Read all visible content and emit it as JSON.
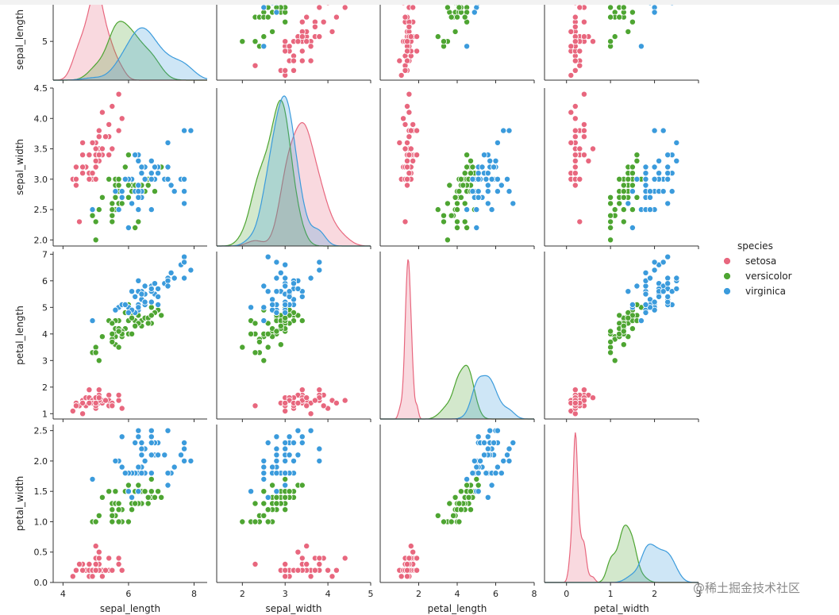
{
  "chart_data": {
    "type": "scatter",
    "subtype": "pairplot",
    "variables": [
      "sepal_length",
      "sepal_width",
      "petal_length",
      "petal_width"
    ],
    "hue": "species",
    "legend": {
      "title": "species",
      "placement": "right-center",
      "entries": [
        {
          "name": "setosa",
          "color": "#e8677e"
        },
        {
          "name": "versicolor",
          "color": "#4ea532"
        },
        {
          "name": "virginica",
          "color": "#3b9bdc"
        }
      ]
    },
    "axes": {
      "sepal_length": {
        "range": [
          3.7,
          8.4
        ],
        "ticks": [
          4,
          6,
          8
        ],
        "tick_labels": [
          "4",
          "6",
          "8"
        ],
        "row_range": [
          4.2,
          6.1
        ],
        "row_ticks": [
          5,
          6
        ],
        "row_tick_labels": [
          "5",
          "6"
        ]
      },
      "sepal_width": {
        "range": [
          1.4,
          5.0
        ],
        "ticks": [
          2,
          3,
          4,
          5
        ],
        "tick_labels": [
          "2",
          "3",
          "4",
          "5"
        ],
        "row_range": [
          1.9,
          4.5
        ],
        "row_ticks": [
          2.0,
          2.5,
          3.0,
          3.5,
          4.0,
          4.5
        ],
        "row_tick_labels": [
          "2.0",
          "2.5",
          "3.0",
          "3.5",
          "4.0",
          "4.5"
        ]
      },
      "petal_length": {
        "range": [
          0.0,
          8.0
        ],
        "ticks": [
          2,
          4,
          6,
          8
        ],
        "tick_labels": [
          "2",
          "4",
          "6",
          "8"
        ],
        "row_range": [
          0.8,
          7.1
        ],
        "row_ticks": [
          1,
          2,
          3,
          4,
          5,
          6,
          7
        ],
        "row_tick_labels": [
          "1",
          "2",
          "3",
          "4",
          "5",
          "6",
          "7"
        ]
      },
      "petal_width": {
        "range": [
          -0.5,
          3.0
        ],
        "ticks": [
          0,
          1,
          2,
          3
        ],
        "tick_labels": [
          "0",
          "1",
          "2",
          "3"
        ],
        "row_range": [
          0.0,
          2.6
        ],
        "row_ticks": [
          0.0,
          0.5,
          1.0,
          1.5,
          2.0,
          2.5
        ],
        "row_tick_labels": [
          "0.0",
          "0.5",
          "1.0",
          "1.5",
          "2.0",
          "2.5"
        ]
      }
    },
    "diagonal": "kde",
    "points": {
      "setosa": [
        [
          5.1,
          3.5,
          1.4,
          0.2
        ],
        [
          4.9,
          3.0,
          1.4,
          0.2
        ],
        [
          4.7,
          3.2,
          1.3,
          0.2
        ],
        [
          4.6,
          3.1,
          1.5,
          0.2
        ],
        [
          5.0,
          3.6,
          1.4,
          0.2
        ],
        [
          5.4,
          3.9,
          1.7,
          0.4
        ],
        [
          4.6,
          3.4,
          1.4,
          0.3
        ],
        [
          5.0,
          3.4,
          1.5,
          0.2
        ],
        [
          4.4,
          2.9,
          1.4,
          0.2
        ],
        [
          4.9,
          3.1,
          1.5,
          0.1
        ],
        [
          5.4,
          3.7,
          1.5,
          0.2
        ],
        [
          4.8,
          3.4,
          1.6,
          0.2
        ],
        [
          4.8,
          3.0,
          1.4,
          0.1
        ],
        [
          4.3,
          3.0,
          1.1,
          0.1
        ],
        [
          5.8,
          4.0,
          1.2,
          0.2
        ],
        [
          5.7,
          4.4,
          1.5,
          0.4
        ],
        [
          5.4,
          3.9,
          1.3,
          0.4
        ],
        [
          5.1,
          3.5,
          1.4,
          0.3
        ],
        [
          5.7,
          3.8,
          1.7,
          0.3
        ],
        [
          5.1,
          3.8,
          1.5,
          0.3
        ],
        [
          5.4,
          3.4,
          1.7,
          0.2
        ],
        [
          5.1,
          3.7,
          1.5,
          0.4
        ],
        [
          4.6,
          3.6,
          1.0,
          0.2
        ],
        [
          5.1,
          3.3,
          1.7,
          0.5
        ],
        [
          4.8,
          3.4,
          1.9,
          0.2
        ],
        [
          5.0,
          3.0,
          1.6,
          0.2
        ],
        [
          5.0,
          3.4,
          1.6,
          0.4
        ],
        [
          5.2,
          3.5,
          1.5,
          0.2
        ],
        [
          5.2,
          3.4,
          1.4,
          0.2
        ],
        [
          4.7,
          3.2,
          1.6,
          0.2
        ],
        [
          4.8,
          3.1,
          1.6,
          0.2
        ],
        [
          5.4,
          3.4,
          1.5,
          0.4
        ],
        [
          5.2,
          4.1,
          1.5,
          0.1
        ],
        [
          5.5,
          4.2,
          1.4,
          0.2
        ],
        [
          4.9,
          3.1,
          1.5,
          0.2
        ],
        [
          5.0,
          3.2,
          1.2,
          0.2
        ],
        [
          5.5,
          3.5,
          1.3,
          0.2
        ],
        [
          4.9,
          3.6,
          1.4,
          0.1
        ],
        [
          4.4,
          3.0,
          1.3,
          0.2
        ],
        [
          5.1,
          3.4,
          1.5,
          0.2
        ],
        [
          5.0,
          3.5,
          1.3,
          0.3
        ],
        [
          4.5,
          2.3,
          1.3,
          0.3
        ],
        [
          4.4,
          3.2,
          1.3,
          0.2
        ],
        [
          5.0,
          3.5,
          1.6,
          0.6
        ],
        [
          5.1,
          3.8,
          1.9,
          0.4
        ],
        [
          4.8,
          3.0,
          1.4,
          0.3
        ],
        [
          5.1,
          3.8,
          1.6,
          0.2
        ],
        [
          4.6,
          3.2,
          1.4,
          0.2
        ],
        [
          5.3,
          3.7,
          1.5,
          0.2
        ],
        [
          5.0,
          3.3,
          1.4,
          0.2
        ]
      ],
      "versicolor": [
        [
          7.0,
          3.2,
          4.7,
          1.4
        ],
        [
          6.4,
          3.2,
          4.5,
          1.5
        ],
        [
          6.9,
          3.1,
          4.9,
          1.5
        ],
        [
          5.5,
          2.3,
          4.0,
          1.3
        ],
        [
          6.5,
          2.8,
          4.6,
          1.5
        ],
        [
          5.7,
          2.8,
          4.5,
          1.3
        ],
        [
          6.3,
          3.3,
          4.7,
          1.6
        ],
        [
          4.9,
          2.4,
          3.3,
          1.0
        ],
        [
          6.6,
          2.9,
          4.6,
          1.3
        ],
        [
          5.2,
          2.7,
          3.9,
          1.4
        ],
        [
          5.0,
          2.0,
          3.5,
          1.0
        ],
        [
          5.9,
          3.0,
          4.2,
          1.5
        ],
        [
          6.0,
          2.2,
          4.0,
          1.0
        ],
        [
          6.1,
          2.9,
          4.7,
          1.4
        ],
        [
          5.6,
          2.9,
          3.6,
          1.3
        ],
        [
          6.7,
          3.1,
          4.4,
          1.4
        ],
        [
          5.6,
          3.0,
          4.5,
          1.5
        ],
        [
          5.8,
          2.7,
          4.1,
          1.0
        ],
        [
          6.2,
          2.2,
          4.5,
          1.5
        ],
        [
          5.6,
          2.5,
          3.9,
          1.1
        ],
        [
          5.9,
          3.2,
          4.8,
          1.8
        ],
        [
          6.1,
          2.8,
          4.0,
          1.3
        ],
        [
          6.3,
          2.5,
          4.9,
          1.5
        ],
        [
          6.1,
          2.8,
          4.7,
          1.2
        ],
        [
          6.4,
          2.9,
          4.3,
          1.3
        ],
        [
          6.6,
          3.0,
          4.4,
          1.4
        ],
        [
          6.8,
          2.8,
          4.8,
          1.4
        ],
        [
          6.7,
          3.0,
          5.0,
          1.7
        ],
        [
          6.0,
          2.9,
          4.5,
          1.5
        ],
        [
          5.7,
          2.6,
          3.5,
          1.0
        ],
        [
          5.5,
          2.4,
          3.8,
          1.1
        ],
        [
          5.5,
          2.4,
          3.7,
          1.0
        ],
        [
          5.8,
          2.7,
          3.9,
          1.2
        ],
        [
          6.0,
          2.7,
          5.1,
          1.6
        ],
        [
          5.4,
          3.0,
          4.5,
          1.5
        ],
        [
          6.0,
          3.4,
          4.5,
          1.6
        ],
        [
          6.7,
          3.1,
          4.7,
          1.5
        ],
        [
          6.3,
          2.3,
          4.4,
          1.3
        ],
        [
          5.6,
          3.0,
          4.1,
          1.3
        ],
        [
          5.5,
          2.5,
          4.0,
          1.3
        ],
        [
          5.5,
          2.6,
          4.4,
          1.2
        ],
        [
          6.1,
          3.0,
          4.6,
          1.4
        ],
        [
          5.8,
          2.6,
          4.0,
          1.2
        ],
        [
          5.0,
          2.3,
          3.3,
          1.0
        ],
        [
          5.6,
          2.7,
          4.2,
          1.3
        ],
        [
          5.7,
          3.0,
          4.2,
          1.2
        ],
        [
          5.7,
          2.9,
          4.2,
          1.3
        ],
        [
          6.2,
          2.9,
          4.3,
          1.3
        ],
        [
          5.1,
          2.5,
          3.0,
          1.1
        ],
        [
          5.7,
          2.8,
          4.1,
          1.3
        ]
      ],
      "virginica": [
        [
          6.3,
          3.3,
          6.0,
          2.5
        ],
        [
          5.8,
          2.7,
          5.1,
          1.9
        ],
        [
          7.1,
          3.0,
          5.9,
          2.1
        ],
        [
          6.3,
          2.9,
          5.6,
          1.8
        ],
        [
          6.5,
          3.0,
          5.8,
          2.2
        ],
        [
          7.6,
          3.0,
          6.6,
          2.1
        ],
        [
          4.9,
          2.5,
          4.5,
          1.7
        ],
        [
          7.3,
          2.9,
          6.3,
          1.8
        ],
        [
          6.7,
          2.5,
          5.8,
          1.8
        ],
        [
          7.2,
          3.6,
          6.1,
          2.5
        ],
        [
          6.5,
          3.2,
          5.1,
          2.0
        ],
        [
          6.4,
          2.7,
          5.3,
          1.9
        ],
        [
          6.8,
          3.0,
          5.5,
          2.1
        ],
        [
          5.7,
          2.5,
          5.0,
          2.0
        ],
        [
          5.8,
          2.8,
          5.1,
          2.4
        ],
        [
          6.4,
          3.2,
          5.3,
          2.3
        ],
        [
          6.5,
          3.0,
          5.5,
          1.8
        ],
        [
          7.7,
          3.8,
          6.7,
          2.2
        ],
        [
          7.7,
          2.6,
          6.9,
          2.3
        ],
        [
          6.0,
          2.2,
          5.0,
          1.5
        ],
        [
          6.9,
          3.2,
          5.7,
          2.3
        ],
        [
          5.6,
          2.8,
          4.9,
          2.0
        ],
        [
          7.7,
          2.8,
          6.7,
          2.0
        ],
        [
          6.3,
          2.7,
          4.9,
          1.8
        ],
        [
          6.7,
          3.3,
          5.7,
          2.1
        ],
        [
          7.2,
          3.2,
          6.0,
          1.8
        ],
        [
          6.2,
          2.8,
          4.8,
          1.8
        ],
        [
          6.1,
          3.0,
          4.9,
          1.8
        ],
        [
          6.4,
          2.8,
          5.6,
          2.1
        ],
        [
          7.2,
          3.0,
          5.8,
          1.6
        ],
        [
          7.4,
          2.8,
          6.1,
          1.9
        ],
        [
          7.9,
          3.8,
          6.4,
          2.0
        ],
        [
          6.4,
          2.8,
          5.6,
          2.2
        ],
        [
          6.3,
          2.8,
          5.1,
          1.5
        ],
        [
          6.1,
          2.6,
          5.6,
          1.4
        ],
        [
          7.7,
          3.0,
          6.1,
          2.3
        ],
        [
          6.3,
          3.4,
          5.6,
          2.4
        ],
        [
          6.4,
          3.1,
          5.5,
          1.8
        ],
        [
          6.0,
          3.0,
          4.8,
          1.8
        ],
        [
          6.9,
          3.1,
          5.4,
          2.1
        ],
        [
          6.7,
          3.1,
          5.6,
          2.4
        ],
        [
          6.9,
          3.1,
          5.1,
          2.3
        ],
        [
          5.8,
          2.7,
          5.1,
          1.9
        ],
        [
          6.8,
          3.2,
          5.9,
          2.3
        ],
        [
          6.7,
          3.3,
          5.7,
          2.5
        ],
        [
          6.7,
          3.0,
          5.2,
          2.3
        ],
        [
          6.3,
          2.5,
          5.0,
          1.9
        ],
        [
          6.5,
          3.0,
          5.2,
          2.0
        ],
        [
          6.2,
          3.4,
          5.4,
          2.3
        ],
        [
          5.9,
          3.0,
          5.1,
          1.8
        ]
      ]
    }
  },
  "watermark": "@稀土掘金技术社区"
}
